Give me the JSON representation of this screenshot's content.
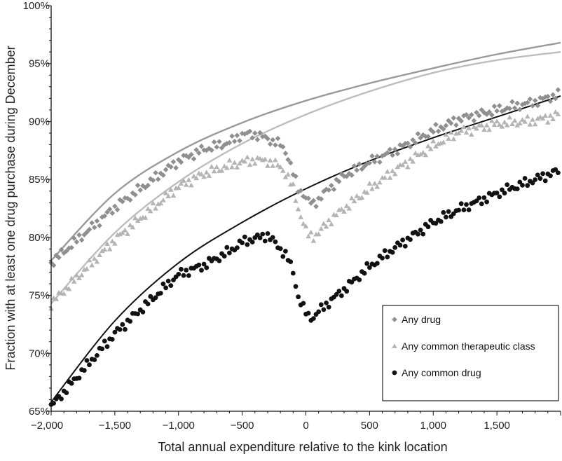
{
  "chart_data": {
    "type": "scatter",
    "xlabel": "Total annual expenditure relative to the kink location",
    "ylabel": "Fraction with at least one drug purchase during December",
    "xlim": [
      -2000,
      2000
    ],
    "ylim": [
      65,
      100
    ],
    "x_ticks": [
      -2000,
      -1500,
      -1000,
      -500,
      0,
      500,
      1000,
      1500
    ],
    "x_tick_labels": [
      "−2,000",
      "−1,500",
      "−1,000",
      "−500",
      "0",
      "500",
      "1,000",
      "1,500"
    ],
    "y_ticks": [
      65,
      70,
      75,
      80,
      85,
      90,
      95,
      100
    ],
    "y_tick_labels": [
      "65%",
      "70%",
      "75%",
      "80%",
      "85%",
      "90%",
      "95%",
      "100%"
    ],
    "grid": false,
    "legend_position": "bottom-right",
    "bin_width": 20,
    "series": [
      {
        "name": "Any drug",
        "marker": "diamond",
        "color": "#8f8f8f",
        "fit_color": "#9a9a9a",
        "fit": {
          "x": [
            -2000,
            -1500,
            -1000,
            -500,
            0,
            500,
            1000,
            1500,
            2000
          ],
          "y": [
            78.0,
            83.8,
            87.4,
            89.9,
            91.8,
            93.3,
            94.6,
            95.8,
            96.8
          ]
        },
        "profile": {
          "x": [
            -2000,
            -1500,
            -1000,
            -800,
            -600,
            -500,
            -400,
            -300,
            -200,
            -150,
            -100,
            -60,
            -20,
            0,
            20,
            60,
            100,
            200,
            300,
            500,
            700,
            1000,
            1200,
            1500,
            1800,
            2000
          ],
          "y": [
            77.8,
            82.6,
            86.6,
            87.6,
            88.2,
            88.9,
            88.9,
            88.5,
            88.0,
            87.3,
            85.5,
            84.2,
            83.8,
            83.4,
            83.1,
            82.9,
            83.3,
            84.4,
            85.3,
            86.5,
            87.5,
            89.2,
            90.2,
            91.0,
            91.7,
            92.4
          ]
        }
      },
      {
        "name": "Any common therapeutic class",
        "marker": "triangle",
        "color": "#b4b4b4",
        "fit_color": "#bdbdbd",
        "fit": {
          "x": [
            -2000,
            -1500,
            -1000,
            -500,
            0,
            500,
            1000,
            1500,
            2000
          ],
          "y": [
            74.3,
            80.4,
            84.8,
            88.1,
            90.6,
            92.6,
            94.2,
            95.3,
            96.0
          ]
        },
        "profile": {
          "x": [
            -2000,
            -1500,
            -1000,
            -800,
            -600,
            -500,
            -400,
            -300,
            -200,
            -150,
            -100,
            -60,
            -20,
            0,
            20,
            60,
            100,
            200,
            300,
            500,
            700,
            1000,
            1200,
            1500,
            1800,
            2000
          ],
          "y": [
            74.3,
            79.8,
            84.4,
            85.5,
            86.2,
            86.5,
            86.7,
            86.6,
            86.1,
            85.4,
            84.2,
            82.5,
            81.3,
            80.6,
            80.2,
            80.1,
            80.4,
            81.6,
            82.5,
            84.2,
            85.8,
            87.9,
            89.1,
            89.8,
            90.1,
            90.6
          ]
        }
      },
      {
        "name": "Any common drug",
        "marker": "circle",
        "color": "#111111",
        "fit_color": "#111111",
        "fit": {
          "x": [
            -2000,
            -1500,
            -1000,
            -500,
            0,
            500,
            1000,
            1500,
            2000
          ],
          "y": [
            65.8,
            72.8,
            77.8,
            81.3,
            84.2,
            86.6,
            88.6,
            90.4,
            92.2
          ]
        },
        "profile": {
          "x": [
            -2000,
            -1500,
            -1000,
            -800,
            -600,
            -500,
            -400,
            -300,
            -200,
            -150,
            -100,
            -60,
            -20,
            0,
            20,
            60,
            100,
            200,
            300,
            500,
            700,
            1000,
            1200,
            1500,
            1800,
            2000
          ],
          "y": [
            65.4,
            71.7,
            76.8,
            77.6,
            78.8,
            79.6,
            79.9,
            80.2,
            79.0,
            78.4,
            77.0,
            74.9,
            73.9,
            73.5,
            73.2,
            73.1,
            73.6,
            74.6,
            75.5,
            77.5,
            79.1,
            81.3,
            82.4,
            83.8,
            85.0,
            85.8
          ]
        }
      }
    ]
  }
}
